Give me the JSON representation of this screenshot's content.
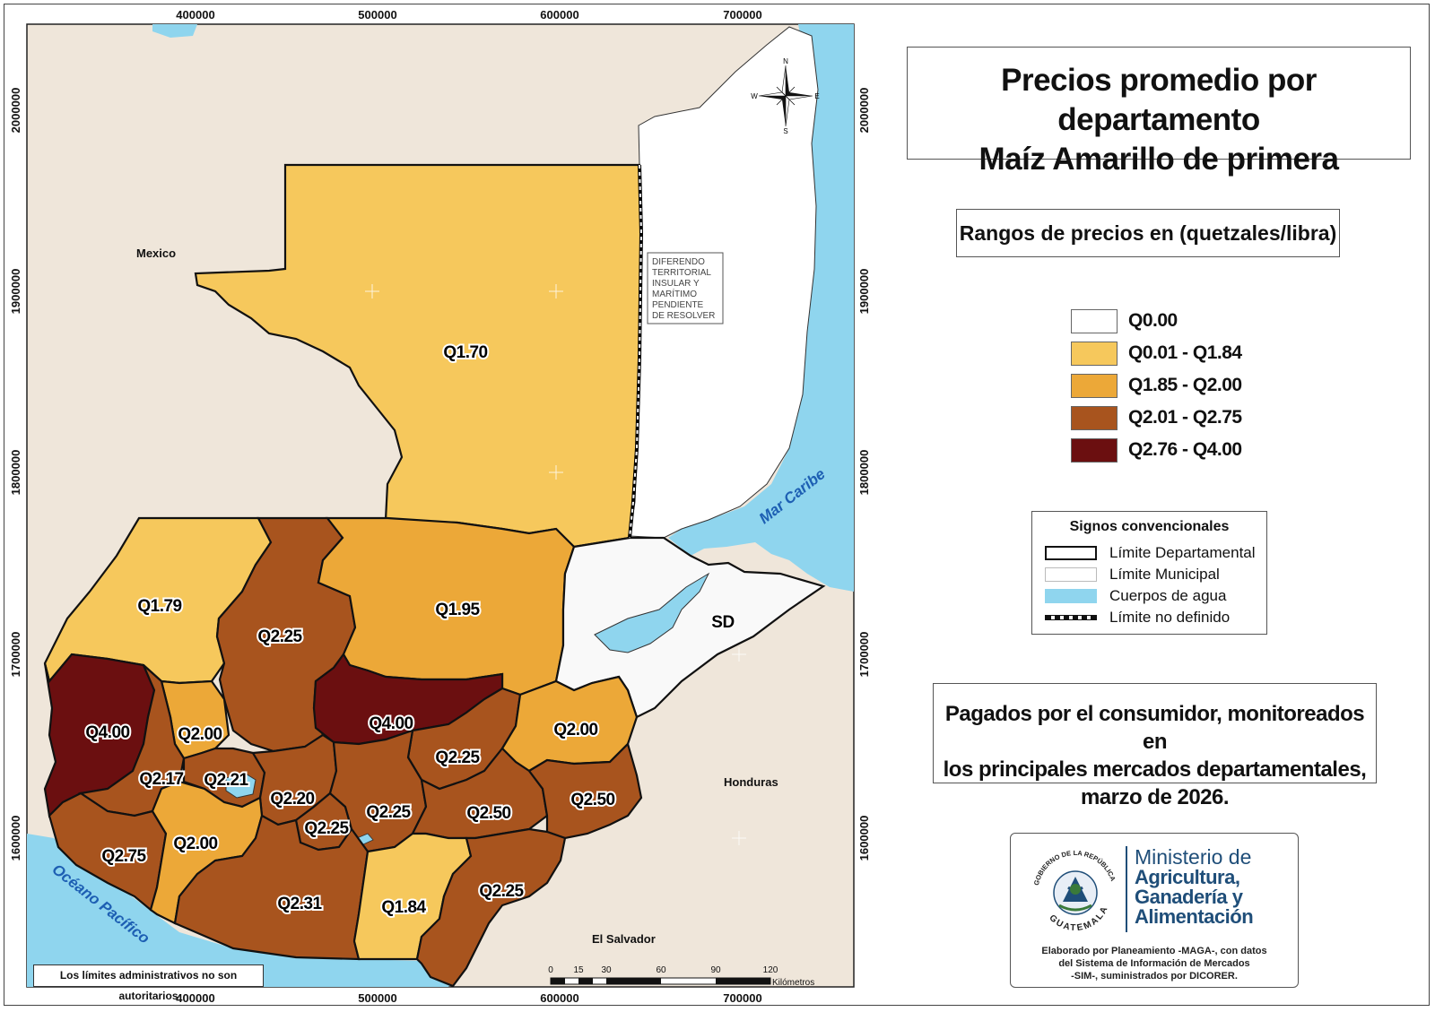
{
  "title": {
    "line1": "Precios promedio por departamento",
    "line2": "Maíz Amarillo de primera"
  },
  "ranges_title": "Rangos de precios en (quetzales/libra)",
  "price_ranges": [
    {
      "label": "Q0.00",
      "color": "#ffffff"
    },
    {
      "label": "Q0.01 - Q1.84",
      "color": "#f6c85c"
    },
    {
      "label": "Q1.85 - Q2.00",
      "color": "#ec a838"
    },
    {
      "label": "Q2.01 - Q2.75",
      "color": "#a8541e"
    },
    {
      "label": "Q2.76 - Q4.00",
      "color": "#6b0f10"
    }
  ],
  "signos": {
    "title": "Signos convencionales",
    "items": [
      {
        "label": "Límite Departamental",
        "symbol": "dept-boundary"
      },
      {
        "label": "Límite Municipal",
        "symbol": "muni-boundary"
      },
      {
        "label": "Cuerpos de agua",
        "symbol": "water"
      },
      {
        "label": "Límite no definido",
        "symbol": "undefined-boundary"
      }
    ]
  },
  "note": {
    "line1": "Pagados por el consumidor, monitoreados en",
    "line2": "los principales mercados departamentales,",
    "line3": "marzo de 2026."
  },
  "logo": {
    "ministerio": "Ministerio de",
    "line2": "Agricultura,",
    "line3": "Ganadería y",
    "line4": "Alimentación",
    "seal_top": "GOBIERNO DE LA REPÚBLICA",
    "seal_bottom": "GUATEMALA",
    "credits1": "Elaborado por Planeamiento -MAGA-, con datos",
    "credits2": "del Sistema de Información de Mercados",
    "credits3": "-SIM-, suministrados por DICORER."
  },
  "disclaimer": "Los límites administrativos no son autoritarios",
  "map": {
    "x_ticks": [
      "400000",
      "500000",
      "600000",
      "700000"
    ],
    "y_ticks": [
      "2000000",
      "1900000",
      "1800000",
      "1700000",
      "1600000"
    ],
    "places": {
      "mexico": "Mexico",
      "honduras": "Honduras",
      "el_salvador": "El Salvador",
      "mar_caribe": "Mar Caribe",
      "oceano": "Océano Pacífico"
    },
    "diferendo": [
      "DIFERENDO",
      "TERRITORIAL",
      "INSULAR Y",
      "MARÍTIMO",
      "PENDIENTE",
      "DE RESOLVER"
    ],
    "sd_label": "SD",
    "compass": {
      "n": "N",
      "s": "S",
      "e": "E",
      "w": "W"
    },
    "scale": {
      "ticks": [
        "0",
        "15",
        "30",
        "60",
        "90",
        "120"
      ],
      "unit": "Kilómetros"
    },
    "departments": [
      {
        "id": "peten",
        "price": "Q1.70",
        "range": 1
      },
      {
        "id": "huehuetenango",
        "price": "Q1.79",
        "range": 1
      },
      {
        "id": "quiche",
        "price": "Q2.25",
        "range": 3
      },
      {
        "id": "alta-verapaz",
        "price": "Q1.95",
        "range": 2
      },
      {
        "id": "izabal",
        "price": "SD",
        "range": 0
      },
      {
        "id": "san-marcos",
        "price": "Q4.00",
        "range": 4
      },
      {
        "id": "totonicapan",
        "price": "Q2.00",
        "range": 2
      },
      {
        "id": "baja-verapaz",
        "price": "Q4.00",
        "range": 4
      },
      {
        "id": "zacapa",
        "price": "Q2.00",
        "range": 2
      },
      {
        "id": "quetzaltenango",
        "price": "Q2.17",
        "range": 3
      },
      {
        "id": "solola",
        "price": "Q2.21",
        "range": 3
      },
      {
        "id": "chimaltenango",
        "price": "Q2.20",
        "range": 3
      },
      {
        "id": "el-progreso",
        "price": "Q2.25",
        "range": 3
      },
      {
        "id": "guatemala",
        "price": "Q2.25",
        "range": 3
      },
      {
        "id": "sacatepequez",
        "price": "Q2.25",
        "range": 3
      },
      {
        "id": "jalapa",
        "price": "Q2.50",
        "range": 3
      },
      {
        "id": "chiquimula",
        "price": "Q2.50",
        "range": 3
      },
      {
        "id": "retalhuleu",
        "price": "Q2.75",
        "range": 3
      },
      {
        "id": "suchitepequez",
        "price": "Q2.00",
        "range": 2
      },
      {
        "id": "escuintla",
        "price": "Q2.31",
        "range": 3
      },
      {
        "id": "santa-rosa",
        "price": "Q1.84",
        "range": 1
      },
      {
        "id": "jutiapa",
        "price": "Q2.25",
        "range": 3
      }
    ]
  }
}
